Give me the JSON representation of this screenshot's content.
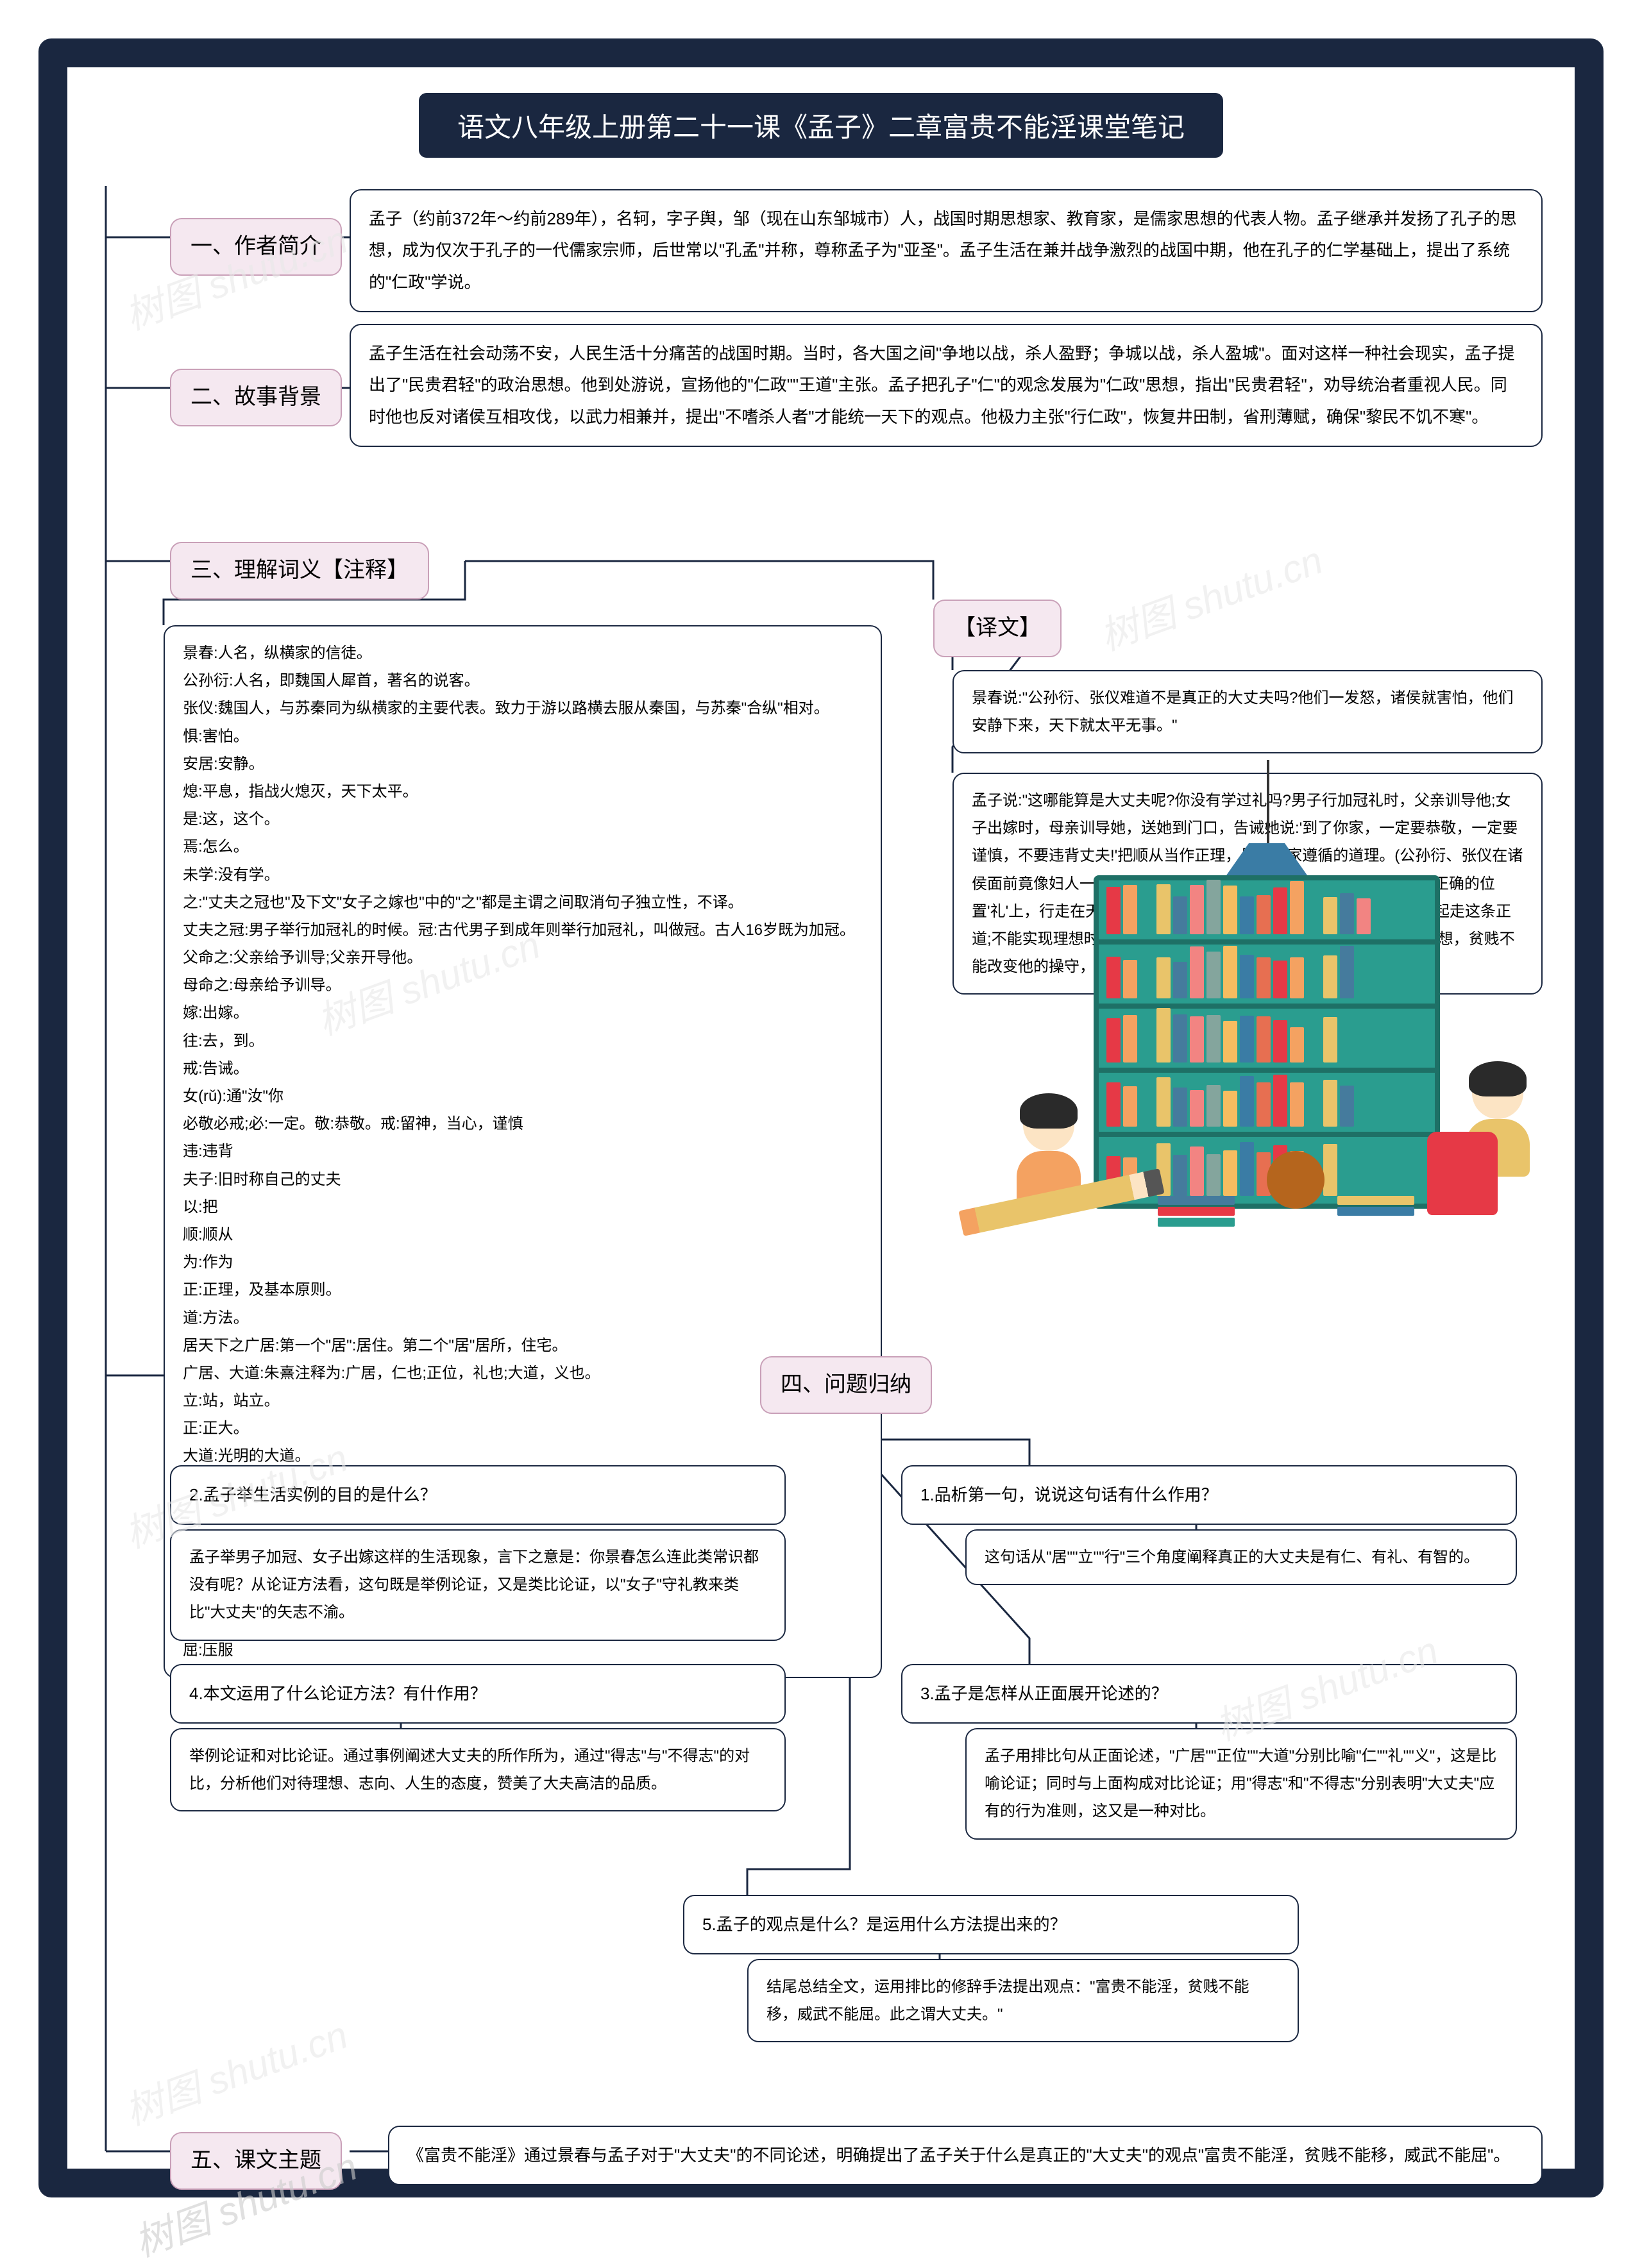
{
  "title": "语文八年级上册第二十一课《孟子》二章富贵不能淫课堂笔记",
  "watermark": "树图 shutu.cn",
  "colors": {
    "frame": "#1a2740",
    "headerBg": "#f5e8f0",
    "headerBorder": "#c9a0b8",
    "nodeBorder": "#1a2740",
    "line": "#1a2740",
    "shelf": "#2a9d8f",
    "shelfDark": "#1e7066",
    "lamp": "#3a7ca5"
  },
  "illustration": {
    "books": [
      "#e63946",
      "#f4a261",
      "#2a9d8f",
      "#e9c46a",
      "#457b9d",
      "#f28482",
      "#84a59d",
      "#f6bd60",
      "#3a7ca5",
      "#e76f51"
    ]
  },
  "sections": {
    "s1": {
      "label": "一、作者简介",
      "text": "孟子（约前372年～约前289年），名轲，字子舆，邹（现在山东邹城市）人，战国时期思想家、教育家，是儒家思想的代表人物。孟子继承并发扬了孔子的思想，成为仅次于孔子的一代儒家宗师，后世常以\"孔孟\"并称，尊称孟子为\"亚圣\"。孟子生活在兼并战争激烈的战国中期，他在孔子的仁学基础上，提出了系统的\"仁政\"学说。"
    },
    "s2": {
      "label": "二、故事背景",
      "text": "孟子生活在社会动荡不安，人民生活十分痛苦的战国时期。当时，各大国之间\"争地以战，杀人盈野；争城以战，杀人盈城\"。面对这样一种社会现实，孟子提出了\"民贵君轻\"的政治思想。他到处游说，宣扬他的\"仁政\"\"王道\"主张。孟子把孔子\"仁\"的观念发展为\"仁政\"思想，指出\"民贵君轻\"，劝导统治者重视人民。同时他也反对诸侯互相攻伐，以武力相兼并，提出\"不嗜杀人者\"才能统一天下的观点。他极力主张\"行仁政\"，恢复井田制，省刑薄赋，确保\"黎民不饥不寒\"。"
    },
    "s3": {
      "label": "三、理解词义【注释】",
      "text": "景春:人名，纵横家的信徒。\n公孙衍:人名，即魏国人犀首，著名的说客。\n张仪:魏国人，与苏秦同为纵横家的主要代表。致力于游以路横去服从秦国，与苏秦\"合纵\"相对。\n惧:害怕。\n安居:安静。\n熄:平息，指战火熄灭，天下太平。\n是:这，这个。\n焉:怎么。\n未学:没有学。\n之:\"丈夫之冠也\"及下文\"女子之嫁也\"中的\"之\"都是主谓之间取消句子独立性，不译。\n丈夫之冠:男子举行加冠礼的时候。冠:古代男子到成年则举行加冠礼，叫做冠。古人16岁既为加冠。\n父命之:父亲给予训导;父亲开导他。\n母命之:母亲给予训导。\n嫁:出嫁。\n往:去，到。\n戒:告诫。\n女(rǔ):通\"汝\"你\n必敬必戒;必:一定。敬:恭敬。戒:留神，当心，谨慎\n违:违背\n夫子:旧时称自己的丈夫\n以:把\n顺:顺从\n为:作为\n正:正理，及基本原则。\n道:方法。\n居天下之广居:第一个\"居\":居住。第二个\"居\"居所，住宅。\n广居、大道:朱熹注释为:广居，仁也;正位，礼也;大道，义也。\n立:站，站立。\n正:正大。\n大道:光明的大道。\n得:实现。\n志:志向。\n由:实行。\n行:这里是固守;坚持的意思。道:原则，行为准则。\n淫:迷乱\n移:改变\n屈:压服"
    },
    "s3b": {
      "label": "【译文】",
      "text1": "景春说:\"公孙衍、张仪难道不是真正的大丈夫吗?他们一发怒，诸侯就害怕，他们安静下来，天下就太平无事。\"",
      "text2": "孟子说:\"这哪能算是大丈夫呢?你没有学过礼吗?男子行加冠礼时，父亲训导他;女子出嫁时，母亲训导她，送她到门口，告诫她说:'到了你家，一定要恭敬，一定要谨慎，不要违背丈夫!'把顺从当作正理，是妇人家遵循的道理。(公孙衍、张仪在诸侯面前竟像妇人一样!)居住在天下最宽广的住宅'仁'里，站立在天下最正确的位置'礼'上，行走在天下最宽广的道路'义'上;能实现理想时，就同人民一起走这条正道;不能实现理想时，就独自行走在这条正道上。富贵不能迷乱他的思想，贫贱不能改变他的操守，威武不能压服他的意志这才叫作大丈夫。\""
    },
    "s4": {
      "label": "四、问题归纳",
      "q1": {
        "q": "1.品析第一句，说说这句话有什么作用？",
        "a": "这句话从\"居\"\"立\"\"行\"三个角度阐释真正的大丈夫是有仁、有礼、有智的。"
      },
      "q2": {
        "q": "2.孟子举生活实例的目的是什么？",
        "a": "孟子举男子加冠、女子出嫁这样的生活现象，言下之意是：你景春怎么连此类常识都没有呢？从论证方法看，这句既是举例论证，又是类比论证，以\"女子\"守礼教来类比\"大丈夫\"的矢志不渝。"
      },
      "q3": {
        "q": "3.孟子是怎样从正面展开论述的？",
        "a": "孟子用排比句从正面论述，\"广居\"\"正位\"\"大道\"分别比喻\"仁\"\"礼\"\"义\"，这是比喻论证；同时与上面构成对比论证；用\"得志\"和\"不得志\"分别表明\"大丈夫\"应有的行为准则，这又是一种对比。"
      },
      "q4": {
        "q": "4.本文运用了什么论证方法？有什作用？",
        "a": "举例论证和对比论证。通过事例阐述大丈夫的所作所为，通过\"得志\"与\"不得志\"的对比，分析他们对待理想、志向、人生的态度，赞美了大夫高洁的品质。"
      },
      "q5": {
        "q": "5.孟子的观点是什么？是运用什么方法提出来的？",
        "a": "结尾总结全文，运用排比的修辞手法提出观点：\"富贵不能淫，贫贱不能移，威武不能屈。此之谓大丈夫。\""
      }
    },
    "s5": {
      "label": "五、课文主题",
      "text": "《富贵不能淫》通过景春与孟子对于\"大丈夫\"的不同论述，明确提出了孟子关于什么是真正的\"大丈夫\"的观点\"富贵不能淫，贫贱不能移，威武不能屈\"。"
    }
  }
}
